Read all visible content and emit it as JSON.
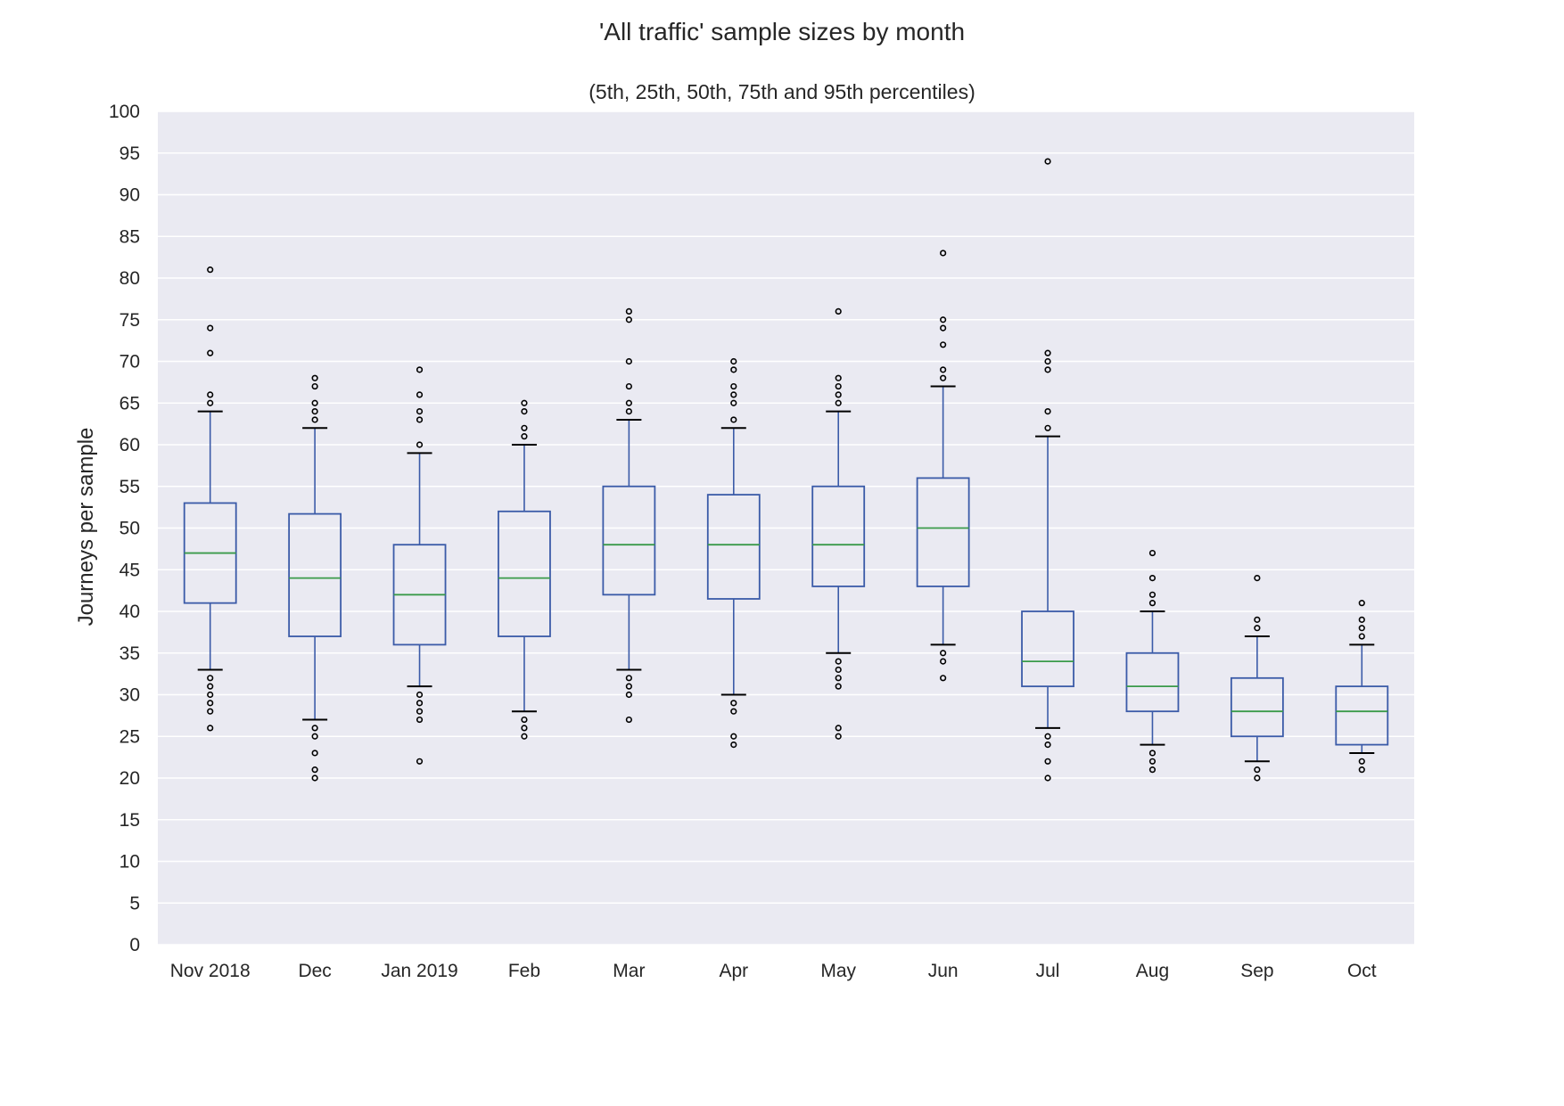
{
  "chart_data": {
    "type": "box",
    "title": "'All traffic' sample sizes by month",
    "subtitle": "(5th, 25th, 50th, 75th and 95th percentiles)",
    "xlabel": "",
    "ylabel": "Journeys per sample",
    "ylim": [
      0,
      100
    ],
    "yticks": [
      0,
      5,
      10,
      15,
      20,
      25,
      30,
      35,
      40,
      45,
      50,
      55,
      60,
      65,
      70,
      75,
      80,
      85,
      90,
      95,
      100
    ],
    "grid": true,
    "categories": [
      "Nov 2018",
      "Dec",
      "Jan 2019",
      "Feb",
      "Mar",
      "Apr",
      "May",
      "Jun",
      "Jul",
      "Aug",
      "Sep",
      "Oct"
    ],
    "boxes": [
      {
        "p5": 33,
        "p25": 41,
        "median": 47,
        "p75": 53,
        "p95": 64,
        "outliers": [
          26,
          28,
          29,
          30,
          31,
          32,
          65,
          66,
          71,
          74,
          81
        ]
      },
      {
        "p5": 27,
        "p25": 37,
        "median": 44,
        "p75": 51.7,
        "p95": 62,
        "outliers": [
          20,
          21,
          23,
          25,
          26,
          63,
          64,
          65,
          67,
          68
        ]
      },
      {
        "p5": 31,
        "p25": 36,
        "median": 42,
        "p75": 48,
        "p95": 59,
        "outliers": [
          22,
          27,
          28,
          29,
          30,
          60,
          63,
          64,
          66,
          69
        ]
      },
      {
        "p5": 28,
        "p25": 37,
        "median": 44,
        "p75": 52,
        "p95": 60,
        "outliers": [
          25,
          26,
          27,
          61,
          62,
          64,
          65
        ]
      },
      {
        "p5": 33,
        "p25": 42,
        "median": 48,
        "p75": 55,
        "p95": 63,
        "outliers": [
          27,
          30,
          31,
          32,
          64,
          65,
          67,
          70,
          75,
          76
        ]
      },
      {
        "p5": 30,
        "p25": 41.5,
        "median": 48,
        "p75": 54,
        "p95": 62,
        "outliers": [
          24,
          25,
          28,
          29,
          63,
          65,
          66,
          67,
          69,
          70
        ]
      },
      {
        "p5": 35,
        "p25": 43,
        "median": 48,
        "p75": 55,
        "p95": 64,
        "outliers": [
          25,
          26,
          31,
          32,
          33,
          34,
          65,
          66,
          67,
          68,
          76
        ]
      },
      {
        "p5": 36,
        "p25": 43,
        "median": 50,
        "p75": 56,
        "p95": 67,
        "outliers": [
          32,
          34,
          35,
          68,
          69,
          72,
          74,
          75,
          83
        ]
      },
      {
        "p5": 26,
        "p25": 31,
        "median": 34,
        "p75": 40,
        "p95": 61,
        "outliers": [
          20,
          22,
          24,
          25,
          62,
          64,
          69,
          70,
          71,
          94
        ]
      },
      {
        "p5": 24,
        "p25": 28,
        "median": 31,
        "p75": 35,
        "p95": 40,
        "outliers": [
          21,
          22,
          23,
          41,
          42,
          44,
          47
        ]
      },
      {
        "p5": 22,
        "p25": 25,
        "median": 28,
        "p75": 32,
        "p95": 37,
        "outliers": [
          20,
          21,
          38,
          39,
          44
        ]
      },
      {
        "p5": 23,
        "p25": 24,
        "median": 28,
        "p75": 31,
        "p95": 36,
        "outliers": [
          21,
          22,
          37,
          38,
          39,
          41
        ]
      }
    ],
    "colors": {
      "plot_background": "#eaeaf2",
      "grid": "#ffffff",
      "box": "#3b5ba8",
      "median": "#3a9a4a",
      "whisker_cap": "#000000",
      "outlier": "#000000"
    }
  }
}
